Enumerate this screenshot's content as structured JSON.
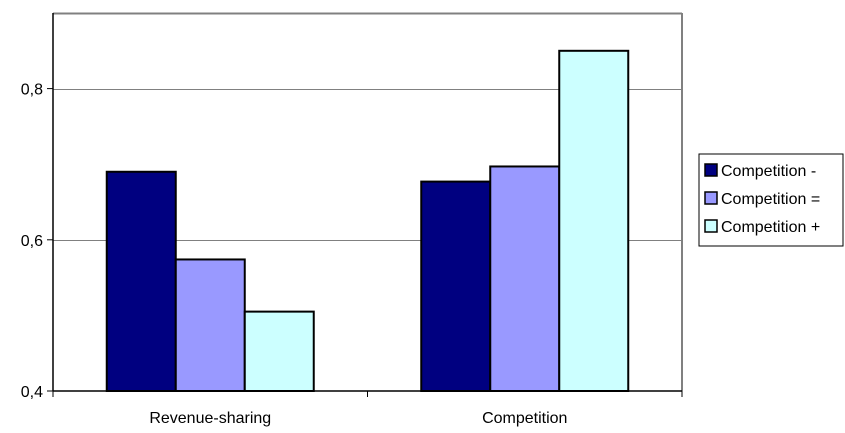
{
  "chart_data": {
    "type": "bar",
    "categories": [
      "Revenue-sharing",
      "Competition"
    ],
    "series": [
      {
        "name": "Competition -",
        "color": "#000080",
        "values": [
          0.69,
          0.677
        ]
      },
      {
        "name": "Competition =",
        "color": "#9999ff",
        "values": [
          0.574,
          0.697
        ]
      },
      {
        "name": "Competition +",
        "color": "#ccffff",
        "values": [
          0.505,
          0.85
        ]
      }
    ],
    "ylim": [
      0.4,
      0.9
    ],
    "y_ticks": [
      {
        "value": 0.4,
        "label": "0,4"
      },
      {
        "value": 0.6,
        "label": "0,6"
      },
      {
        "value": 0.8,
        "label": "0,8"
      }
    ],
    "grid": true,
    "legend_position": "right",
    "plot_border_color": "#808080",
    "gridline_color": "#808080",
    "bar_outline_color": "#000000"
  }
}
